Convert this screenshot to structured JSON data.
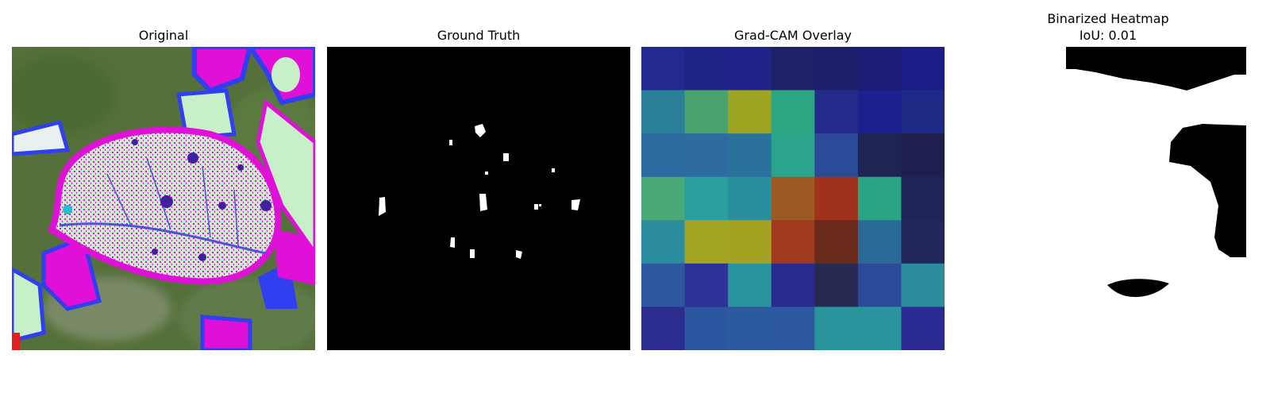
{
  "figure": {
    "panels": [
      {
        "title": "Original"
      },
      {
        "title": "Ground Truth"
      },
      {
        "title": "Grad-CAM Overlay"
      },
      {
        "title": "Binarized Heatmap",
        "subtitle": "IoU: 0.01"
      }
    ]
  },
  "colors": {
    "background": "#ffffff",
    "mask_fg": "#ffffff",
    "mask_bg": "#000000",
    "leaf": "#c8f0c8",
    "magenta": "#e010d8",
    "blue": "#3040f0"
  },
  "gradcam_grid": [
    [
      "#232a8f",
      "#1f2587",
      "#22238a",
      "#1f2068",
      "#1c1e6a",
      "#1c1c78",
      "#1c1d86"
    ],
    [
      "#2b7f96",
      "#4aa36f",
      "#9da421",
      "#2aa682",
      "#242a8a",
      "#1c1f8e",
      "#1f2a86"
    ],
    [
      "#2c6aa0",
      "#2f6aa0",
      "#2a729c",
      "#2aa48a",
      "#2b4a98",
      "#202452",
      "#1d1f4e"
    ],
    [
      "#4aa977",
      "#2a9ea0",
      "#2a8e9c",
      "#9c5a22",
      "#a0321c",
      "#2aa484",
      "#1f2456"
    ],
    [
      "#2a8c9c",
      "#a4a424",
      "#a4a222",
      "#a03a1c",
      "#6a2a1c",
      "#2a6a98",
      "#22265a"
    ],
    [
      "#2c58a0",
      "#2c3296",
      "#2a949c",
      "#2a2a8e",
      "#272a52",
      "#2b4a9a",
      "#2a8c9c"
    ],
    [
      "#2c2d8e",
      "#2c56a0",
      "#2c5aa0",
      "#2c58a0",
      "#2a949c",
      "#2a949c",
      "#2a2a92"
    ]
  ]
}
